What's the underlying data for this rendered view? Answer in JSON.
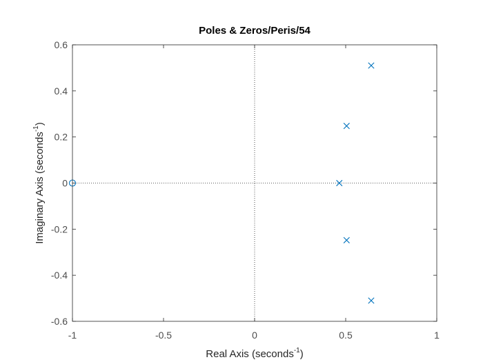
{
  "chart_data": {
    "type": "scatter",
    "title": "Poles & Zeros/Peris/54",
    "xlabel": {
      "text": "Real Axis (seconds",
      "superscript": "-1",
      "close": ")"
    },
    "ylabel": {
      "text": "Imaginary Axis (seconds",
      "superscript": "-1",
      "close": ")"
    },
    "xlim": [
      -1,
      1
    ],
    "ylim": [
      -0.6,
      0.6
    ],
    "xticks": [
      -1,
      -0.5,
      0,
      0.5,
      1
    ],
    "xtick_labels": [
      "-1",
      "-0.5",
      "0",
      "0.5",
      "1"
    ],
    "yticks": [
      -0.6,
      -0.4,
      -0.2,
      0,
      0.2,
      0.4,
      0.6
    ],
    "ytick_labels": [
      "-0.6",
      "-0.4",
      "-0.2",
      "0",
      "0.2",
      "0.4",
      "0.6"
    ],
    "grid": false,
    "reference_lines": "dotted lines at x=0 and y=0",
    "marker_color": "#0072bd",
    "series": [
      {
        "marker": "x",
        "points": [
          {
            "x": 0.64,
            "y": 0.51
          },
          {
            "x": 0.505,
            "y": 0.248
          },
          {
            "x": 0.465,
            "y": 0.0
          },
          {
            "x": 0.505,
            "y": -0.248
          },
          {
            "x": 0.64,
            "y": -0.51
          }
        ]
      },
      {
        "marker": "o",
        "points": [
          {
            "x": -1.0,
            "y": 0.0
          }
        ]
      }
    ]
  }
}
